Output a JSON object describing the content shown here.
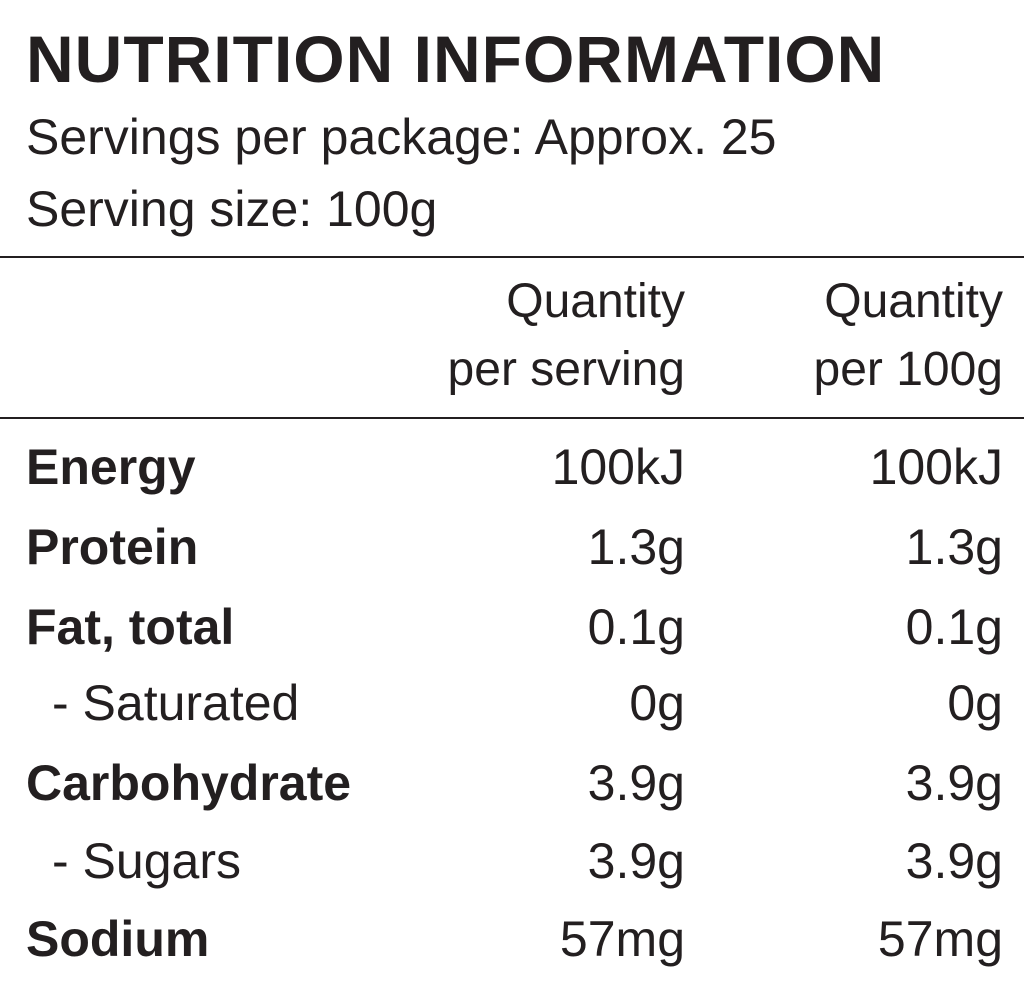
{
  "header": {
    "title": "NUTRITION INFORMATION",
    "servings": "Servings per package: Approx. 25",
    "serving_size": "Serving size: 100g"
  },
  "table": {
    "columns": [
      [
        "Quantity",
        "per serving"
      ],
      [
        "Quantity",
        "per 100g"
      ]
    ],
    "rows": [
      [
        "Energy",
        "100kJ",
        "100kJ"
      ],
      [
        "Protein",
        "1.3g",
        "1.3g"
      ],
      [
        "Fat, total",
        "0.1g",
        "0.1g"
      ],
      [
        "- Saturated",
        "0g",
        "0g"
      ],
      [
        "Carbohydrate",
        "3.9g",
        "3.9g"
      ],
      [
        "- Sugars",
        "3.9g",
        "3.9g"
      ],
      [
        "Sodium",
        "57mg",
        "57mg"
      ]
    ]
  }
}
